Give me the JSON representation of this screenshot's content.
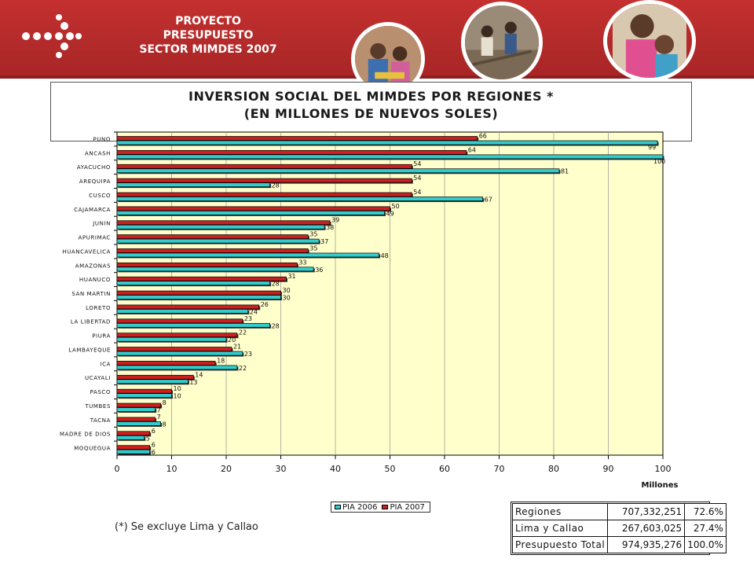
{
  "header": {
    "project_line1": "PROYECTO",
    "project_line2": "PRESUPUESTO",
    "project_line3": "SECTOR MIMDES 2007",
    "bg_color": "#b82c2c"
  },
  "title": {
    "line1": "INVERSION SOCIAL DEL MIMDES POR REGIONES *",
    "line2": "(EN MILLONES DE NUEVOS SOLES)"
  },
  "chart_data": {
    "type": "bar",
    "orientation": "horizontal",
    "categories": [
      "PUNO",
      "ANCASH",
      "AYACUCHO",
      "AREQUIPA",
      "CUSCO",
      "CAJAMARCA",
      "JUNIN",
      "APURIMAC",
      "HUANCAVELICA",
      "AMAZONAS",
      "HUANUCO",
      "SAN MARTIN",
      "LORETO",
      "LA LIBERTAD",
      "PIURA",
      "LAMBAYEQUE",
      "ICA",
      "UCAYALI",
      "PASCO",
      "TUMBES",
      "TACNA",
      "MADRE DE DIOS",
      "MOQUEGUA"
    ],
    "series": [
      {
        "name": "PIA 2007",
        "color": "#cc1f1f",
        "values": [
          66,
          64,
          54,
          54,
          54,
          50,
          39,
          35,
          35,
          33,
          31,
          30,
          26,
          23,
          22,
          21,
          18,
          14,
          10,
          8,
          7,
          6,
          6
        ]
      },
      {
        "name": "PIA 2006",
        "color": "#33cccc",
        "values": [
          99,
          100,
          81,
          28,
          67,
          49,
          38,
          37,
          48,
          36,
          28,
          30,
          24,
          28,
          20,
          23,
          22,
          13,
          10,
          7,
          8,
          5,
          6
        ]
      }
    ],
    "xlabel": "Millones",
    "xlim": [
      0,
      100
    ],
    "xticks": [
      0,
      10,
      20,
      30,
      40,
      50,
      60,
      70,
      80,
      90,
      100
    ],
    "grid": true,
    "plot_bg": "#ffffcc",
    "legend_position": "bottom",
    "legend_order": [
      "PIA 2006",
      "PIA 2007"
    ]
  },
  "footnote": "(*) Se excluye Lima y Callao",
  "summary_table": {
    "rows": [
      {
        "name": "Regiones",
        "amount": "707,332,251",
        "pct": "72.6%"
      },
      {
        "name": "Lima y Callao",
        "amount": "267,603,025",
        "pct": "27.4%"
      },
      {
        "name": "Presupuesto Total",
        "amount": "974,935,276",
        "pct": "100.0%"
      }
    ]
  }
}
